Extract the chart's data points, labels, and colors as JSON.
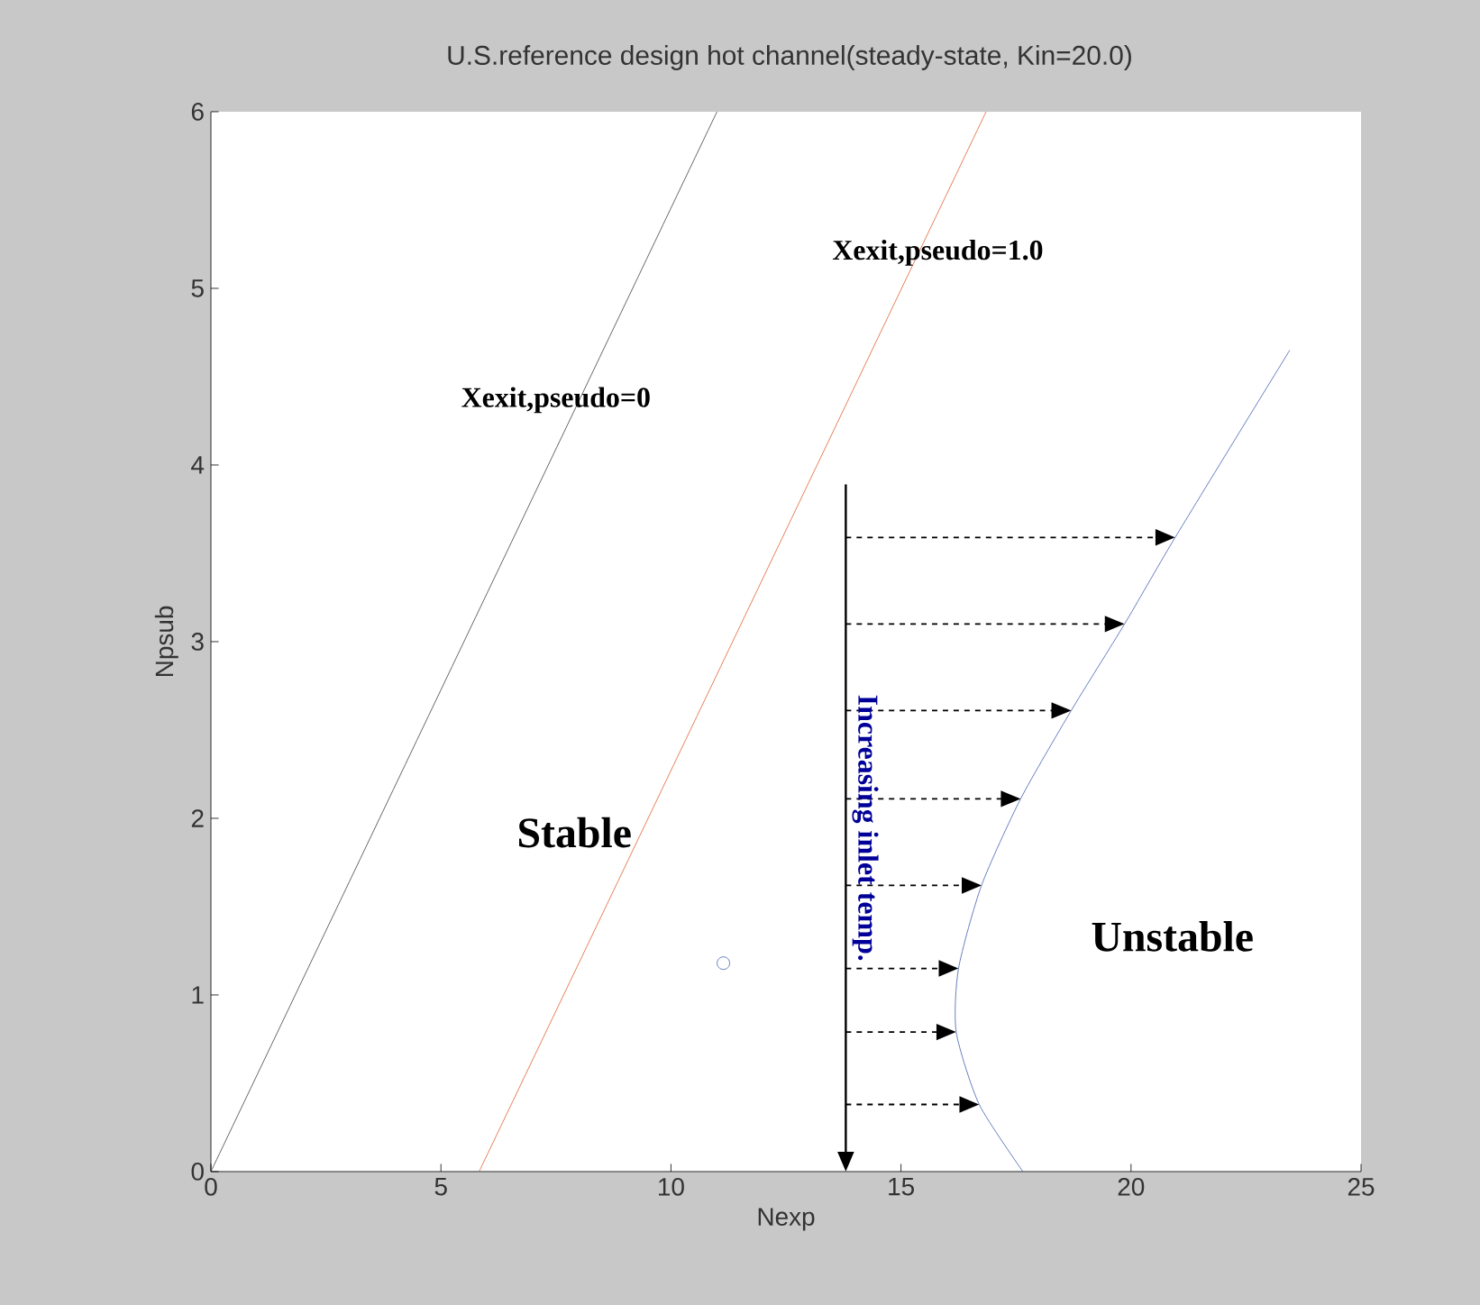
{
  "chart_data": {
    "type": "line",
    "title": "U.S.reference design hot channel(steady-state, Kin=20.0)",
    "xlabel": "Nexp",
    "ylabel": "Npsub",
    "xlim": [
      0,
      25
    ],
    "ylim": [
      0,
      6
    ],
    "xticks": [
      0,
      5,
      10,
      15,
      20,
      25
    ],
    "yticks": [
      0,
      1,
      2,
      3,
      4,
      5,
      6
    ],
    "marker": "none",
    "line_style": "solid",
    "series": [
      {
        "x": [
          0,
          11.0
        ],
        "values": [
          0,
          6
        ],
        "color": "#404040"
      },
      {
        "x": [
          5.83,
          16.85
        ],
        "values": [
          0,
          6
        ],
        "color": "#e06030"
      },
      {
        "x": [
          17.65,
          16.7,
          16.2,
          16.25,
          16.75,
          17.6,
          18.7,
          19.86,
          20.96,
          23.45
        ],
        "values": [
          0,
          0.38,
          0.79,
          1.15,
          1.62,
          2.11,
          2.61,
          3.1,
          3.59,
          4.65
        ],
        "color": "#4060b0"
      },
      {
        "type": "scatter",
        "marker": "circle",
        "x": [
          11.14
        ],
        "values": [
          1.18
        ],
        "color": "#4060b0"
      }
    ],
    "ref_lines": [
      {
        "axis": "x",
        "value": 13.8,
        "label": "Increasing inlet temp.",
        "color": "#000000"
      }
    ],
    "annotations": [
      "Xexit,pseudo=0",
      "Xexit,pseudo=1.0",
      "Stable",
      "Unstable"
    ]
  }
}
